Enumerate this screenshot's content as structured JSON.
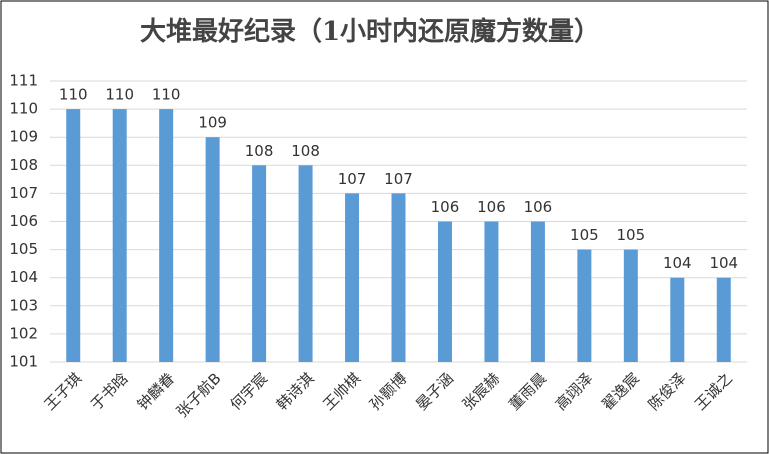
{
  "chart_data": {
    "type": "bar",
    "title": "大堆最好纪录（1小时内还原魔方数量）",
    "categories": [
      "王子琪",
      "于书晗",
      "钟麟眷",
      "张子航B",
      "何宇宸",
      "韩诗淇",
      "王帅棋",
      "孙颢博",
      "晏子涵",
      "张宸赫",
      "董雨晨",
      "高翊泽",
      "翟逸宸",
      "陈俊泽",
      "王诚之"
    ],
    "values": [
      110,
      110,
      110,
      109,
      108,
      108,
      107,
      107,
      106,
      106,
      106,
      105,
      105,
      104,
      104
    ],
    "color": "#5b9bd5",
    "ylim": [
      101,
      111
    ],
    "yticks": [
      101,
      102,
      103,
      104,
      105,
      106,
      107,
      108,
      109,
      110,
      111
    ],
    "grid": true
  }
}
